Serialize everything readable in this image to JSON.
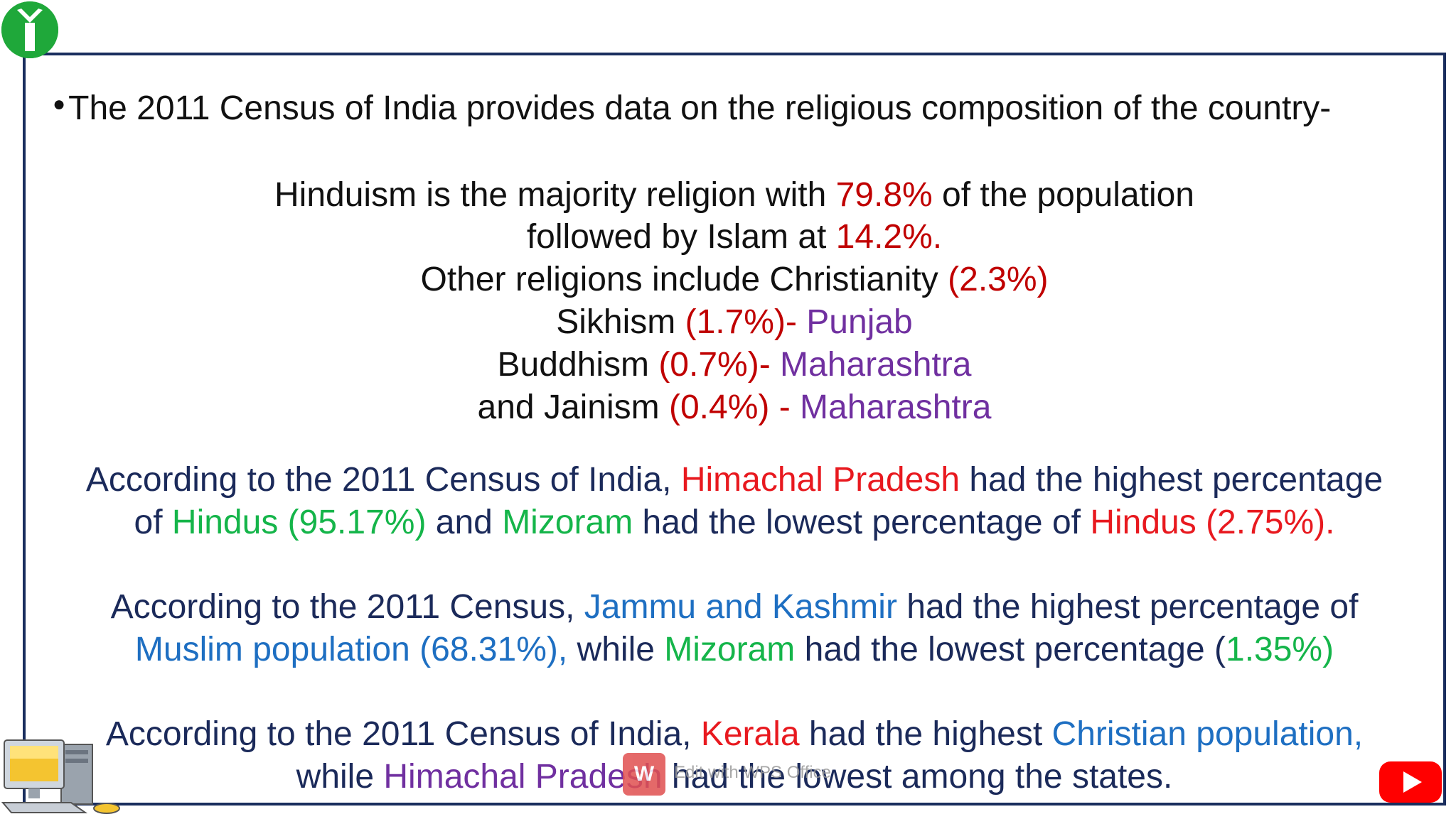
{
  "intro": "The 2011 Census of India provides data on the religious composition of the country-",
  "lines": {
    "l1": {
      "a": "Hinduism is the majority religion with ",
      "b": "79.8%",
      "c": " of the population"
    },
    "l2": {
      "a": "followed by Islam at ",
      "b": "14.2%."
    },
    "l3": {
      "a": "Other religions include Christianity ",
      "b": "(2.3%)"
    },
    "l4": {
      "a": "Sikhism ",
      "b": "(1.7%)-",
      "c": " Punjab"
    },
    "l5": {
      "a": "Buddhism ",
      "b": "(0.7%)-",
      "c": " Maharashtra"
    },
    "l6": {
      "a": "and Jainism ",
      "b": "(0.4%) -",
      "c": " Maharashtra"
    }
  },
  "para1": {
    "l1": {
      "a": "According to the 2011 Census of India, ",
      "b": "Himachal Pradesh",
      "c": " had the highest percentage"
    },
    "l2": {
      "a": "of ",
      "b": "Hindus (95.17%)",
      "c": " and ",
      "d": "Mizoram",
      "e": " had the lowest percentage of ",
      "f": "Hindus (2.75%)."
    }
  },
  "para2": {
    "l1": {
      "a": "According to the 2011 Census, ",
      "b": "Jammu and Kashmir",
      "c": " had the highest percentage of"
    },
    "l2": {
      "a": "Muslim population (68.31%),",
      "b": " while ",
      "c": "Mizoram",
      "d": " had the lowest percentage (",
      "e": "1.35%)"
    }
  },
  "para3": {
    "l1": {
      "a": "According to the 2011 Census of India, ",
      "b": "Kerala",
      "c": " had the highest ",
      "d": "Christian population,"
    },
    "l2": {
      "a": "while ",
      "b": "Himachal Pradesh",
      "c": " had the lowest among the states."
    }
  },
  "watermark": {
    "badge": "W",
    "text": "Edit with WPS Office"
  },
  "icons": [
    "logo-icon",
    "computer-icon",
    "wps-icon",
    "youtube-icon"
  ],
  "colors": {
    "frame": "#1a2e5e",
    "percent_red": "#c00000",
    "state_red": "#e8191f",
    "purple": "#7030a0",
    "green": "#15b54a",
    "blue": "#1e6fc2",
    "logo_green": "#1fa83a"
  }
}
